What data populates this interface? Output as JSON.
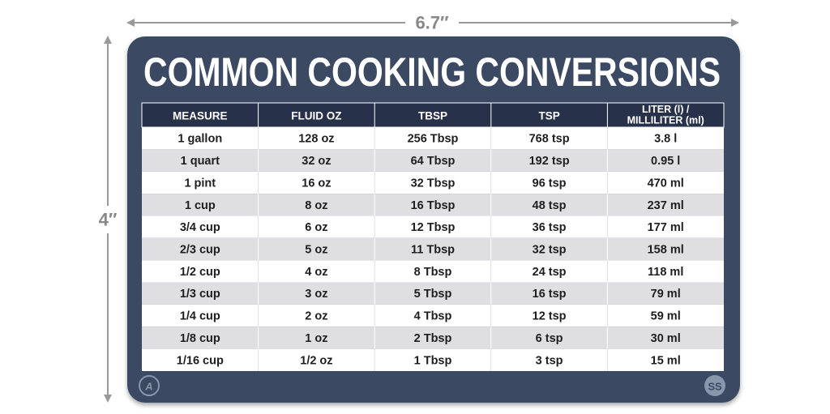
{
  "dimensions": {
    "width": "6.7″",
    "height": "4″"
  },
  "title": "COMMON COOKING CONVERSIONS",
  "table": {
    "header": [
      "MEASURE",
      "FLUID OZ",
      "TBSP",
      "TSP",
      [
        "LITER (l) /",
        "MILLILITER (ml)"
      ]
    ],
    "rows": [
      [
        "1 gallon",
        "128 oz",
        "256 Tbsp",
        "768 tsp",
        "3.8 l"
      ],
      [
        "1 quart",
        "32 oz",
        "64 Tbsp",
        "192 tsp",
        "0.95 l"
      ],
      [
        "1 pint",
        "16 oz",
        "32 Tbsp",
        "96 tsp",
        "470 ml"
      ],
      [
        "1 cup",
        "8 oz",
        "16 Tbsp",
        "48 tsp",
        "237 ml"
      ],
      [
        "3/4 cup",
        "6 oz",
        "12 Tbsp",
        "36 tsp",
        "177 ml"
      ],
      [
        "2/3 cup",
        "5 oz",
        "11 Tbsp",
        "32 tsp",
        "158 ml"
      ],
      [
        "1/2 cup",
        "4 oz",
        "8 Tbsp",
        "24 tsp",
        "118 ml"
      ],
      [
        "1/3 cup",
        "3 oz",
        "5 Tbsp",
        "16 tsp",
        "79 ml"
      ],
      [
        "1/4 cup",
        "2 oz",
        "4 Tbsp",
        "12 tsp",
        "59 ml"
      ],
      [
        "1/8 cup",
        "1 oz",
        "2 Tbsp",
        "6 tsp",
        "30 ml"
      ],
      [
        "1/16 cup",
        "1/2 oz",
        "1 Tbsp",
        "3 tsp",
        "15 ml"
      ]
    ]
  },
  "logos": [
    "A",
    "SS"
  ]
}
